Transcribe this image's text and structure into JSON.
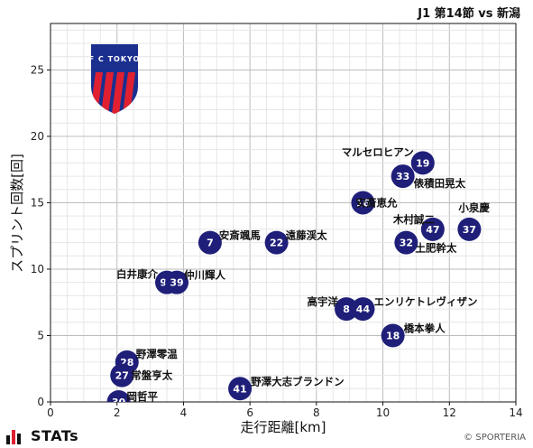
{
  "header": {
    "title": "J1 第14節 vs 新潟"
  },
  "brand": {
    "name": "STATs",
    "logo_text": "F C TOKYO"
  },
  "credit": "© SPORTERIA",
  "colors": {
    "point": "#1f1f7a",
    "grid": "#cccccc",
    "badge_blue": "#1b2f8f",
    "badge_red": "#e02030"
  },
  "chart_data": {
    "type": "scatter",
    "title": "",
    "xlabel": "走行距離[km]",
    "ylabel": "スプリント回数[回]",
    "xlim": [
      0,
      14
    ],
    "ylim": [
      0,
      28.5
    ],
    "x_ticks": [
      0,
      2,
      4,
      6,
      8,
      10,
      12,
      14
    ],
    "y_ticks": [
      0,
      5,
      10,
      15,
      20,
      25
    ],
    "grid": true,
    "points": [
      {
        "number": "19",
        "name": "マルセロヒアン",
        "x": 11.2,
        "y": 18
      },
      {
        "number": "33",
        "name": "俵積田晃太",
        "x": 10.6,
        "y": 17
      },
      {
        "number": "16",
        "name": "安斎恵允",
        "x": 9.4,
        "y": 15
      },
      {
        "number": "37",
        "name": "小泉慶",
        "x": 12.6,
        "y": 13
      },
      {
        "number": "47",
        "name": "木村誠二",
        "x": 11.5,
        "y": 13
      },
      {
        "number": "32",
        "name": "土肥幹太",
        "x": 10.7,
        "y": 12
      },
      {
        "number": "7",
        "name": "安斎颯馬",
        "x": 4.8,
        "y": 12
      },
      {
        "number": "22",
        "name": "遠藤渓太",
        "x": 6.8,
        "y": 12
      },
      {
        "number": "99",
        "name": "白井康介",
        "x": 3.5,
        "y": 9
      },
      {
        "number": "39",
        "name": "仲川輝人",
        "x": 3.8,
        "y": 9
      },
      {
        "number": "8",
        "name": "高宇洋",
        "x": 8.9,
        "y": 7
      },
      {
        "number": "44",
        "name": "エンリケトレヴィザン",
        "x": 9.4,
        "y": 7
      },
      {
        "number": "18",
        "name": "橋本拳人",
        "x": 10.3,
        "y": 5
      },
      {
        "number": "28",
        "name": "野澤零温",
        "x": 2.3,
        "y": 3
      },
      {
        "number": "27",
        "name": "常盤亨太",
        "x": 2.15,
        "y": 2
      },
      {
        "number": "30",
        "name": "岡哲平",
        "x": 2.05,
        "y": 0
      },
      {
        "number": "41",
        "name": "野澤大志ブランドン",
        "x": 5.7,
        "y": 1
      }
    ]
  }
}
